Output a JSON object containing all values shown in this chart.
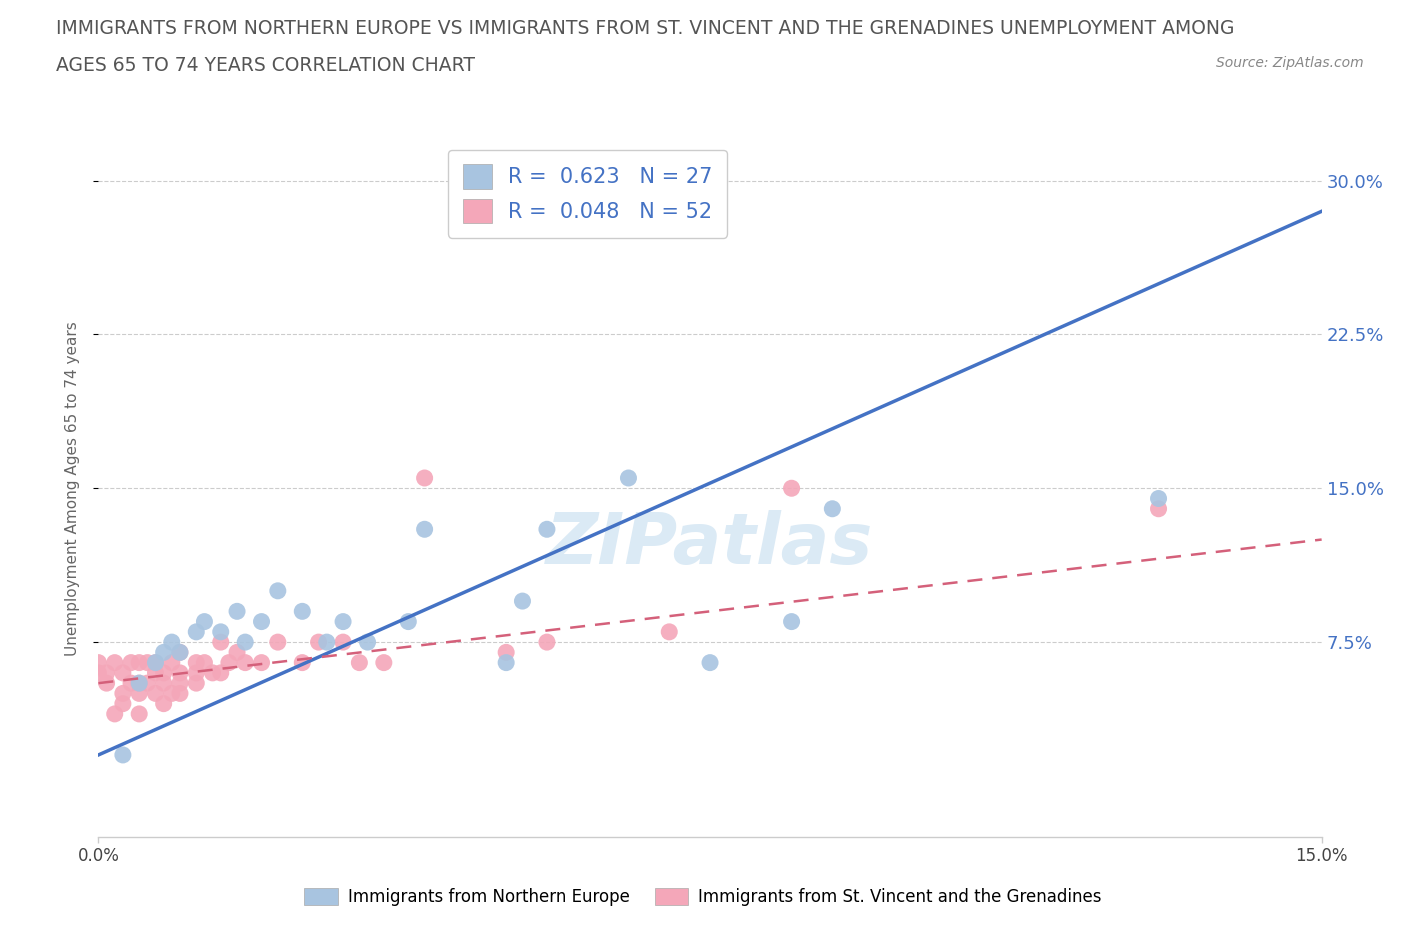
{
  "title_line1": "IMMIGRANTS FROM NORTHERN EUROPE VS IMMIGRANTS FROM ST. VINCENT AND THE GRENADINES UNEMPLOYMENT AMONG",
  "title_line2": "AGES 65 TO 74 YEARS CORRELATION CHART",
  "source": "Source: ZipAtlas.com",
  "ylabel": "Unemployment Among Ages 65 to 74 years",
  "ytick_labels": [
    "7.5%",
    "15.0%",
    "22.5%",
    "30.0%"
  ],
  "ytick_values": [
    0.075,
    0.15,
    0.225,
    0.3
  ],
  "legend_blue_R": "0.623",
  "legend_blue_N": "27",
  "legend_pink_R": "0.048",
  "legend_pink_N": "52",
  "blue_color": "#a8c4e0",
  "blue_line_color": "#4472c4",
  "pink_color": "#f4a7b9",
  "pink_line_color": "#d4607a",
  "watermark": "ZIPatlas",
  "blue_scatter_x": [
    0.003,
    0.005,
    0.007,
    0.008,
    0.009,
    0.01,
    0.012,
    0.013,
    0.015,
    0.017,
    0.018,
    0.02,
    0.022,
    0.025,
    0.028,
    0.03,
    0.033,
    0.038,
    0.04,
    0.05,
    0.052,
    0.055,
    0.065,
    0.075,
    0.085,
    0.09,
    0.13
  ],
  "blue_scatter_y": [
    0.02,
    0.055,
    0.065,
    0.07,
    0.075,
    0.07,
    0.08,
    0.085,
    0.08,
    0.09,
    0.075,
    0.085,
    0.1,
    0.09,
    0.075,
    0.085,
    0.075,
    0.085,
    0.13,
    0.065,
    0.095,
    0.13,
    0.155,
    0.065,
    0.085,
    0.14,
    0.145
  ],
  "pink_scatter_x": [
    0.0,
    0.0,
    0.001,
    0.001,
    0.002,
    0.002,
    0.003,
    0.003,
    0.003,
    0.004,
    0.004,
    0.005,
    0.005,
    0.005,
    0.005,
    0.006,
    0.006,
    0.007,
    0.007,
    0.007,
    0.008,
    0.008,
    0.008,
    0.009,
    0.009,
    0.01,
    0.01,
    0.01,
    0.01,
    0.012,
    0.012,
    0.012,
    0.013,
    0.014,
    0.015,
    0.015,
    0.016,
    0.017,
    0.018,
    0.02,
    0.022,
    0.025,
    0.027,
    0.03,
    0.032,
    0.035,
    0.04,
    0.05,
    0.055,
    0.07,
    0.085,
    0.13
  ],
  "pink_scatter_y": [
    0.06,
    0.065,
    0.055,
    0.06,
    0.04,
    0.065,
    0.045,
    0.05,
    0.06,
    0.055,
    0.065,
    0.04,
    0.05,
    0.055,
    0.065,
    0.055,
    0.065,
    0.05,
    0.06,
    0.065,
    0.045,
    0.055,
    0.06,
    0.05,
    0.065,
    0.05,
    0.055,
    0.06,
    0.07,
    0.055,
    0.06,
    0.065,
    0.065,
    0.06,
    0.06,
    0.075,
    0.065,
    0.07,
    0.065,
    0.065,
    0.075,
    0.065,
    0.075,
    0.075,
    0.065,
    0.065,
    0.155,
    0.07,
    0.075,
    0.08,
    0.15,
    0.14
  ],
  "xlim": [
    0.0,
    0.15
  ],
  "ylim": [
    -0.02,
    0.32
  ],
  "blue_line_x0": 0.0,
  "blue_line_y0": 0.02,
  "blue_line_x1": 0.15,
  "blue_line_y1": 0.285,
  "pink_line_x0": 0.0,
  "pink_line_y0": 0.055,
  "pink_line_x1": 0.15,
  "pink_line_y1": 0.125
}
